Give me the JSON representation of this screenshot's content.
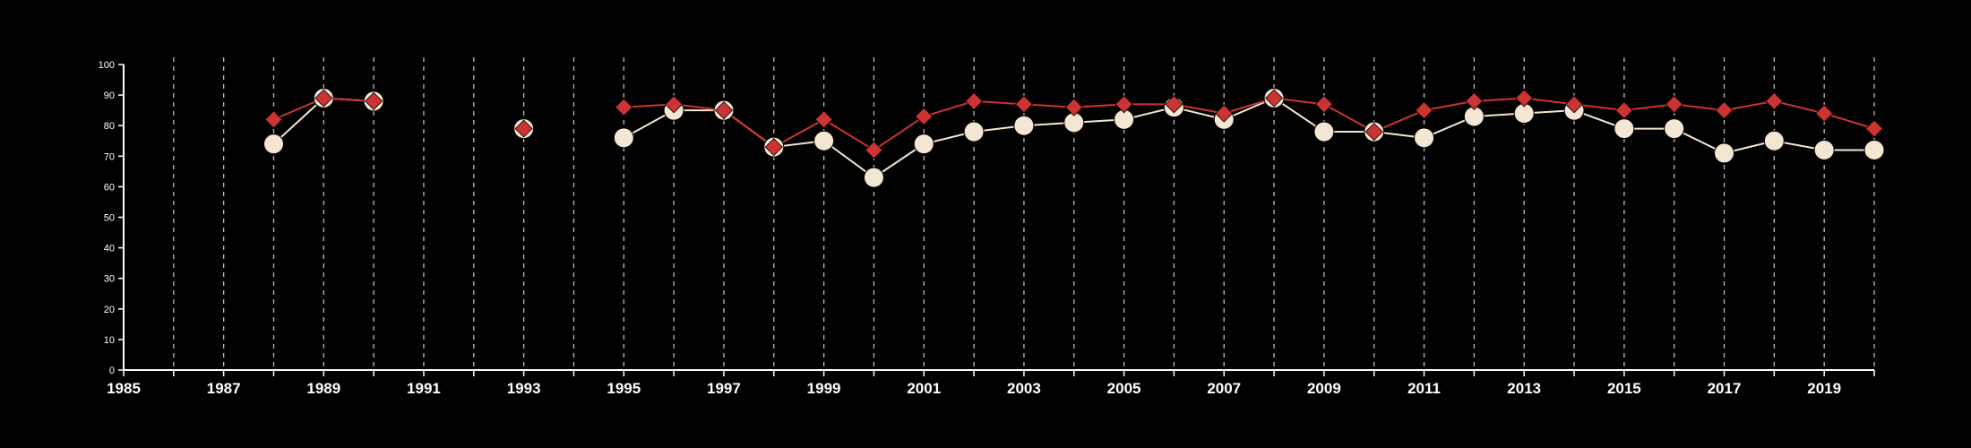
{
  "chart_data": {
    "type": "line",
    "title": "",
    "xlabel": "",
    "ylabel": "",
    "xlim": [
      1985,
      2020
    ],
    "ylim": [
      0,
      100
    ],
    "y_ticks": [
      0,
      10,
      20,
      30,
      40,
      50,
      60,
      70,
      80,
      90,
      100
    ],
    "x_tick_values": [
      1985,
      1986,
      1987,
      1988,
      1989,
      1990,
      1991,
      1992,
      1993,
      1994,
      1995,
      1996,
      1997,
      1998,
      1999,
      2000,
      2001,
      2002,
      2003,
      2004,
      2005,
      2006,
      2007,
      2008,
      2009,
      2010,
      2011,
      2012,
      2013,
      2014,
      2015,
      2016,
      2017,
      2018,
      2019,
      2020
    ],
    "x_tick_labels": [
      "1985",
      "1987",
      "1989",
      "1991",
      "1993",
      "1995",
      "1997",
      "1999",
      "2001",
      "2003",
      "2005",
      "2007",
      "2009",
      "2011",
      "2013",
      "2015",
      "2017",
      "2019"
    ],
    "grid": "vertical dashed",
    "legend": "none",
    "colors": {
      "background": "#000000",
      "axis": "#ffffff",
      "grid": "#bbbbbb",
      "series_a": "#f5e6d3",
      "series_b": "#cc3333"
    },
    "x": [
      1988,
      1989,
      1990,
      1993,
      1995,
      1996,
      1997,
      1998,
      1999,
      2000,
      2001,
      2002,
      2003,
      2004,
      2005,
      2006,
      2007,
      2008,
      2009,
      2010,
      2011,
      2012,
      2013,
      2014,
      2015,
      2016,
      2017,
      2018,
      2019,
      2020
    ],
    "series": [
      {
        "marker": "circle",
        "values": [
          74,
          89,
          88,
          79,
          76,
          85,
          85,
          73,
          75,
          63,
          74,
          78,
          80,
          81,
          82,
          86,
          82,
          89,
          78,
          78,
          76,
          83,
          84,
          85,
          79,
          79,
          71,
          75,
          72,
          72
        ]
      },
      {
        "marker": "diamond",
        "values": [
          82,
          89,
          88,
          79,
          86,
          87,
          85,
          73,
          82,
          72,
          83,
          88,
          87,
          86,
          87,
          87,
          84,
          89,
          87,
          78,
          85,
          88,
          89,
          87,
          85,
          87,
          85,
          88,
          84,
          79
        ]
      }
    ]
  }
}
